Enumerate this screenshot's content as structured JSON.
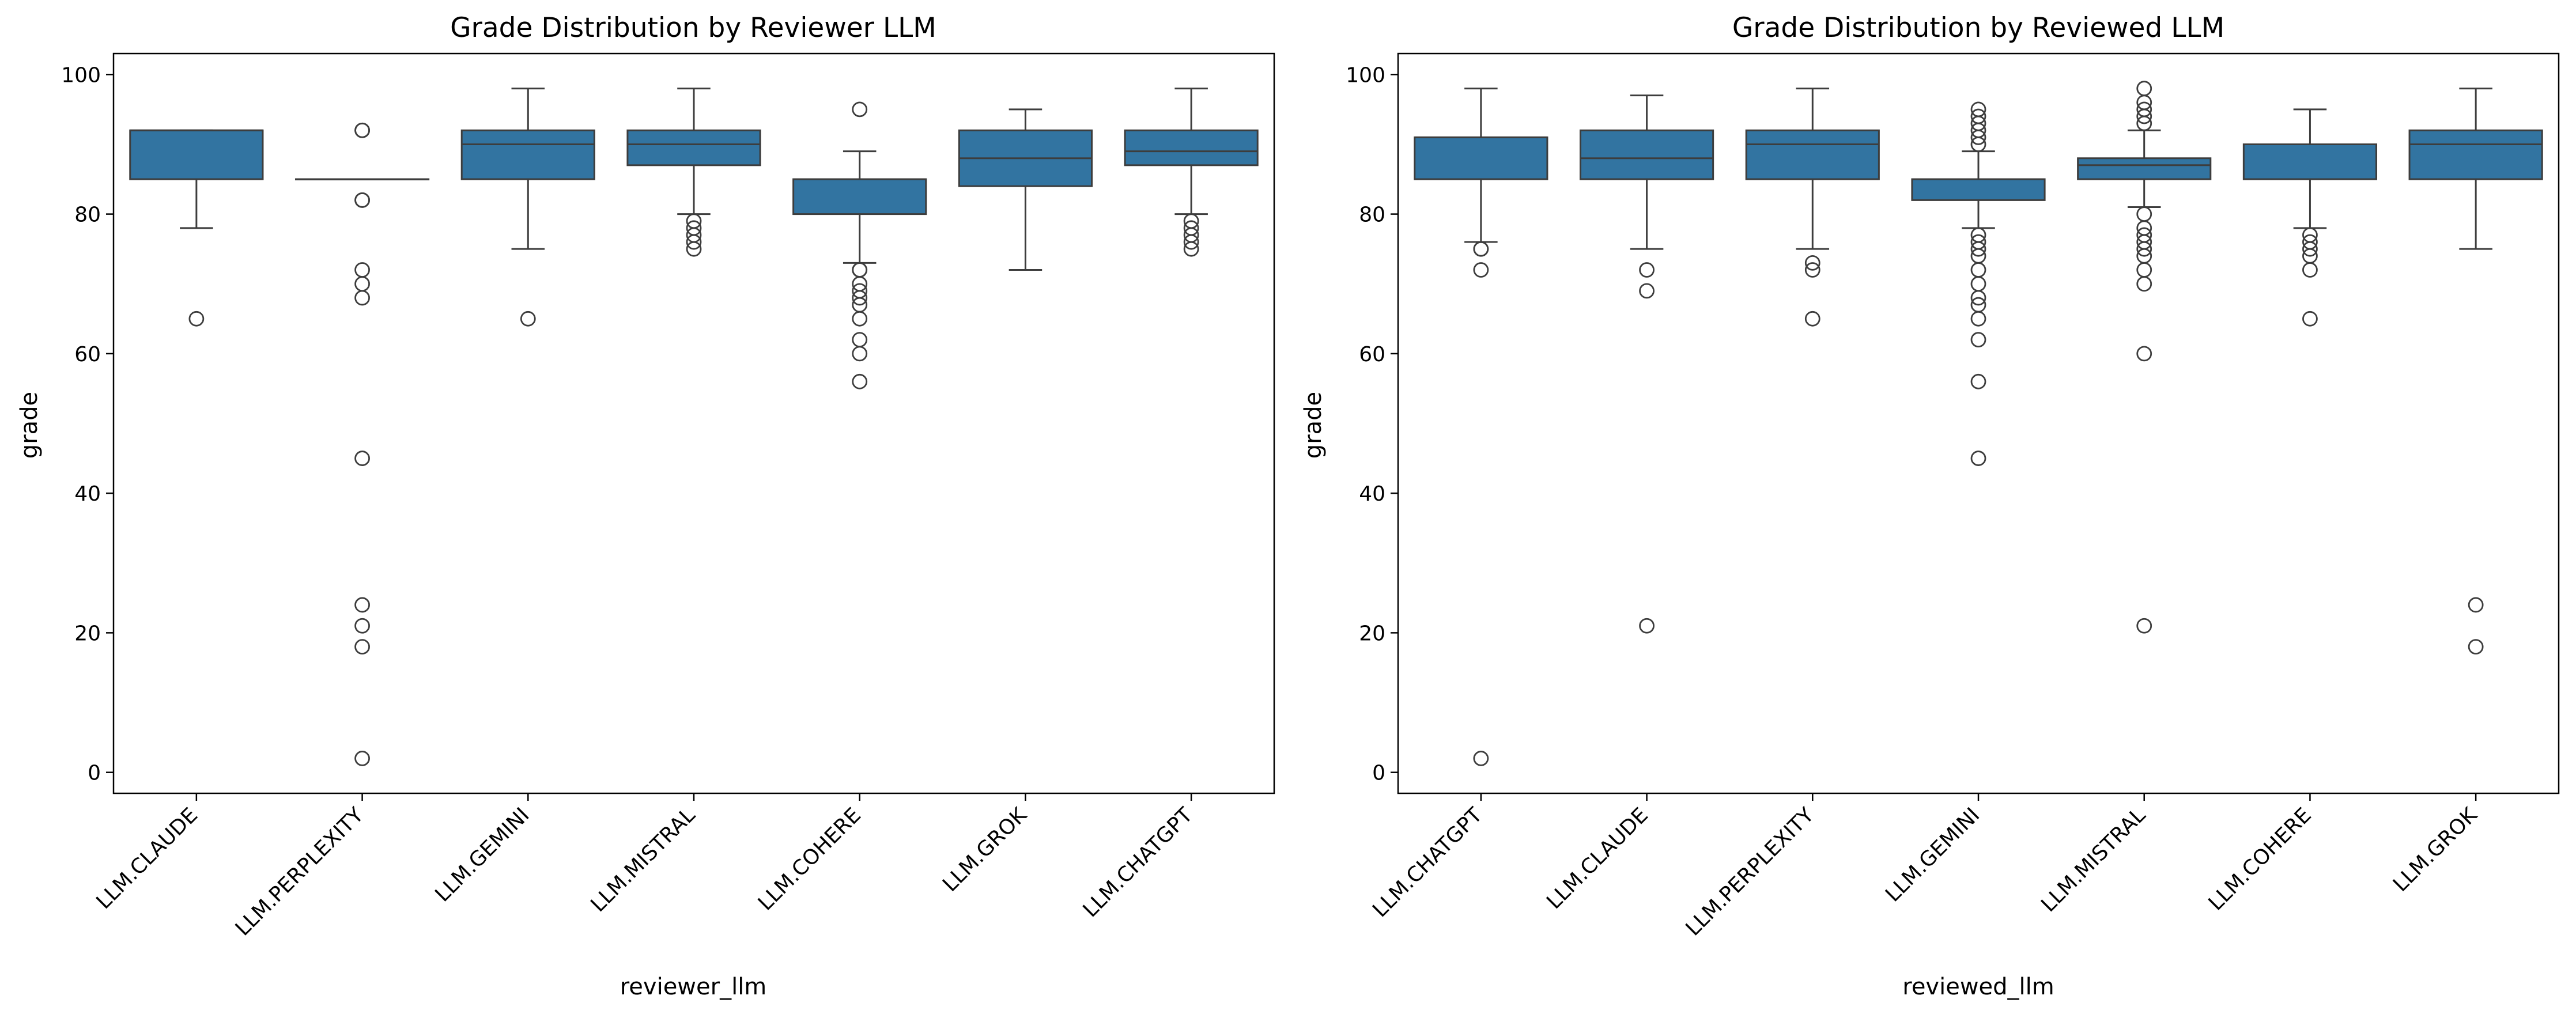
{
  "chart_data": [
    {
      "type": "box",
      "title": "Grade Distribution by Reviewer LLM",
      "xlabel": "reviewer_llm",
      "ylabel": "grade",
      "ylim": [
        -3,
        103
      ],
      "yticks": [
        0,
        20,
        40,
        60,
        80,
        100
      ],
      "grid": false,
      "box_color": "#3274a1",
      "categories": [
        "LLM.CLAUDE",
        "LLM.PERPLEXITY",
        "LLM.GEMINI",
        "LLM.MISTRAL",
        "LLM.COHERE",
        "LLM.GROK",
        "LLM.CHATGPT"
      ],
      "boxes": [
        {
          "category": "LLM.CLAUDE",
          "q1": 85,
          "median": 92,
          "q3": 92,
          "whisker_low": 78,
          "whisker_high": 92,
          "outliers": [
            65
          ]
        },
        {
          "category": "LLM.PERPLEXITY",
          "q1": 85,
          "median": 85,
          "q3": 85,
          "whisker_low": 85,
          "whisker_high": 85,
          "outliers": [
            92,
            92,
            82,
            82,
            72,
            70,
            68,
            45,
            24,
            21,
            18,
            2
          ]
        },
        {
          "category": "LLM.GEMINI",
          "q1": 85,
          "median": 90,
          "q3": 92,
          "whisker_low": 75,
          "whisker_high": 98,
          "outliers": [
            65
          ]
        },
        {
          "category": "LLM.MISTRAL",
          "q1": 87,
          "median": 90,
          "q3": 92,
          "whisker_low": 80,
          "whisker_high": 98,
          "outliers": [
            79,
            78,
            77,
            76,
            75
          ]
        },
        {
          "category": "LLM.COHERE",
          "q1": 80,
          "median": 85,
          "q3": 85,
          "whisker_low": 73,
          "whisker_high": 89,
          "outliers": [
            95,
            72,
            72,
            70,
            69,
            68,
            67,
            65,
            62,
            60,
            56
          ]
        },
        {
          "category": "LLM.GROK",
          "q1": 84,
          "median": 88,
          "q3": 92,
          "whisker_low": 72,
          "whisker_high": 95,
          "outliers": []
        },
        {
          "category": "LLM.CHATGPT",
          "q1": 87,
          "median": 89,
          "q3": 92,
          "whisker_low": 80,
          "whisker_high": 98,
          "outliers": [
            79,
            78,
            77,
            76,
            75
          ]
        }
      ]
    },
    {
      "type": "box",
      "title": "Grade Distribution by Reviewed LLM",
      "xlabel": "reviewed_llm",
      "ylabel": "grade",
      "ylim": [
        -3,
        103
      ],
      "yticks": [
        0,
        20,
        40,
        60,
        80,
        100
      ],
      "grid": false,
      "box_color": "#3274a1",
      "categories": [
        "LLM.CHATGPT",
        "LLM.CLAUDE",
        "LLM.PERPLEXITY",
        "LLM.GEMINI",
        "LLM.MISTRAL",
        "LLM.COHERE",
        "LLM.GROK"
      ],
      "boxes": [
        {
          "category": "LLM.CHATGPT",
          "q1": 85,
          "median": 91,
          "q3": 91,
          "whisker_low": 76,
          "whisker_high": 98,
          "outliers": [
            75,
            75,
            72,
            2
          ]
        },
        {
          "category": "LLM.CLAUDE",
          "q1": 85,
          "median": 88,
          "q3": 92,
          "whisker_low": 75,
          "whisker_high": 97,
          "outliers": [
            72,
            69,
            21
          ]
        },
        {
          "category": "LLM.PERPLEXITY",
          "q1": 85,
          "median": 90,
          "q3": 92,
          "whisker_low": 75,
          "whisker_high": 98,
          "outliers": [
            73,
            72,
            65
          ]
        },
        {
          "category": "LLM.GEMINI",
          "q1": 82,
          "median": 85,
          "q3": 85,
          "whisker_low": 78,
          "whisker_high": 89,
          "outliers": [
            95,
            94,
            93,
            92,
            91,
            90,
            77,
            76,
            75,
            74,
            72,
            70,
            68,
            67,
            65,
            62,
            56,
            45
          ]
        },
        {
          "category": "LLM.MISTRAL",
          "q1": 85,
          "median": 87,
          "q3": 88,
          "whisker_low": 81,
          "whisker_high": 92,
          "outliers": [
            98,
            96,
            95,
            94,
            93,
            80,
            78,
            77,
            76,
            75,
            74,
            72,
            70,
            60,
            21
          ]
        },
        {
          "category": "LLM.COHERE",
          "q1": 85,
          "median": 90,
          "q3": 90,
          "whisker_low": 78,
          "whisker_high": 95,
          "outliers": [
            77,
            76,
            75,
            74,
            72,
            65
          ]
        },
        {
          "category": "LLM.GROK",
          "q1": 85,
          "median": 90,
          "q3": 92,
          "whisker_low": 75,
          "whisker_high": 98,
          "outliers": [
            24,
            18
          ]
        }
      ]
    }
  ]
}
